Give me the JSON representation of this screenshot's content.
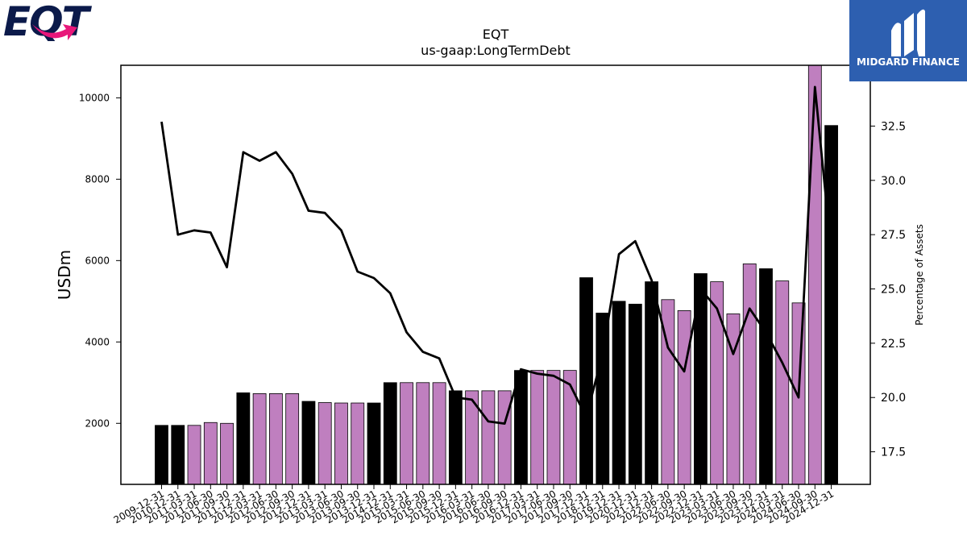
{
  "logos": {
    "eqt": {
      "text": "EQT"
    },
    "midgard": {
      "text": "MIDGARD FINANCE"
    }
  },
  "colors": {
    "black_bar": "#000000",
    "purple_bar": "#bf7fbf",
    "line": "#000000",
    "midgard_blue": "#2d5fb0",
    "eqt_navy": "#0b1a4a",
    "eqt_pink": "#e8177a"
  },
  "chart_data": {
    "type": "bar",
    "title": "EQT",
    "subtitle": "us-gaap:LongTermDebt",
    "ylabel": "USDm",
    "y2label": "Percentage of Assets",
    "ylim": [
      500,
      10800
    ],
    "y2lim": [
      16.0,
      35.3
    ],
    "yticks": [
      2000,
      4000,
      6000,
      8000,
      10000
    ],
    "y2ticks": [
      17.5,
      20.0,
      22.5,
      25.0,
      27.5,
      30.0,
      32.5
    ],
    "categories": [
      "2009-12-31",
      "2010-12-31",
      "2011-03-31",
      "2011-06-30",
      "2011-09-30",
      "2011-12-31",
      "2012-03-31",
      "2012-06-30",
      "2012-09-30",
      "2012-12-31",
      "2013-03-31",
      "2013-06-30",
      "2013-09-30",
      "2013-12-31",
      "2014-12-31",
      "2015-03-31",
      "2015-06-30",
      "2015-09-30",
      "2015-12-31",
      "2016-03-31",
      "2016-06-30",
      "2016-09-30",
      "2016-12-31",
      "2017-03-31",
      "2017-06-30",
      "2017-09-30",
      "2017-12-31",
      "2018-12-31",
      "2019-12-31",
      "2020-12-31",
      "2021-12-31",
      "2022-06-30",
      "2022-09-30",
      "2022-12-31",
      "2023-03-31",
      "2023-06-30",
      "2023-09-30",
      "2023-12-31",
      "2024-03-31",
      "2024-06-30",
      "2024-09-30",
      "2024-12-31"
    ],
    "series": [
      {
        "type": "bar",
        "values": [
          1950,
          1950,
          1950,
          2020,
          2000,
          2750,
          2730,
          2730,
          2730,
          2540,
          2510,
          2500,
          2500,
          2500,
          3000,
          3000,
          3000,
          3000,
          2800,
          2800,
          2800,
          2800,
          3300,
          3300,
          3300,
          3300,
          5580,
          4710,
          5000,
          4930,
          5480,
          5040,
          4770,
          5680,
          5480,
          4690,
          5920,
          5800,
          5500,
          4960,
          10800,
          9320
        ],
        "color_keys": [
          "k",
          "k",
          "p",
          "p",
          "p",
          "k",
          "p",
          "p",
          "p",
          "k",
          "p",
          "p",
          "p",
          "k",
          "k",
          "p",
          "p",
          "p",
          "k",
          "p",
          "p",
          "p",
          "k",
          "p",
          "p",
          "p",
          "k",
          "k",
          "k",
          "k",
          "k",
          "p",
          "p",
          "k",
          "p",
          "p",
          "p",
          "k",
          "p",
          "p",
          "p",
          "k"
        ]
      },
      {
        "type": "line",
        "axis": "right",
        "values": [
          32.7,
          27.5,
          27.7,
          27.6,
          26.0,
          31.3,
          30.9,
          31.3,
          30.3,
          28.6,
          28.5,
          27.7,
          25.8,
          25.5,
          24.8,
          23.0,
          22.1,
          21.8,
          20.0,
          19.9,
          18.9,
          18.8,
          21.3,
          21.1,
          21.0,
          20.6,
          19.1,
          22.0,
          26.6,
          27.2,
          25.4,
          22.3,
          21.2,
          25.0,
          24.1,
          22.0,
          24.1,
          23.0,
          21.6,
          20.0,
          34.3,
          26.7
        ]
      }
    ]
  }
}
